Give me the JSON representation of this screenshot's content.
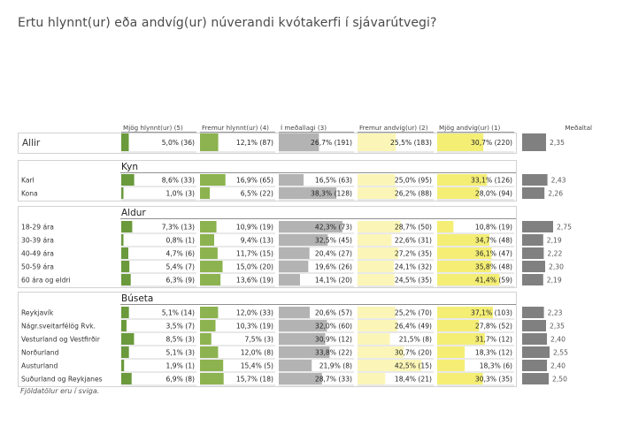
{
  "title": "Ertu hlynnt(ur) eða andvíg(ur) núverandi kvótakerfi í sjávarútvegi?",
  "footnote": "Fjöldatölur eru í sviga.",
  "colors": {
    "strongly_favor": "#6a9a3c",
    "favor": "#8cb34f",
    "neutral": "#b3b3b3",
    "against": "#fbf6b8",
    "strongly_against": "#f4ee75",
    "mean": "#808080"
  },
  "chart_data": {
    "type": "table",
    "columns": [
      "Mjög hlynnt(ur) (5)",
      "Fremur hlynnt(ur) (4)",
      "Í meðallagi (3)",
      "Fremur andvíg(ur) (2)",
      "Mjög andvíg(ur) (1)"
    ],
    "mean_label": "Meðaltal",
    "mean_range": [
      1,
      5
    ],
    "groups": [
      {
        "name": "",
        "rows": [
          {
            "label": "Allir",
            "values": [
              "5,0% (36)",
              "12,1% (87)",
              "26,7% (191)",
              "25,5% (183)",
              "30,7% (220)"
            ],
            "pct": [
              5.0,
              12.1,
              26.7,
              25.5,
              30.7
            ],
            "mean": 2.35,
            "mean_text": "2,35"
          }
        ]
      },
      {
        "name": "Kyn",
        "rows": [
          {
            "label": "Karl",
            "values": [
              "8,6% (33)",
              "16,9% (65)",
              "16,5% (63)",
              "25,0% (95)",
              "33,1% (126)"
            ],
            "pct": [
              8.6,
              16.9,
              16.5,
              25.0,
              33.1
            ],
            "mean": 2.43,
            "mean_text": "2,43"
          },
          {
            "label": "Kona",
            "values": [
              "1,0% (3)",
              "6,5% (22)",
              "38,3% (128)",
              "26,2% (88)",
              "28,0% (94)"
            ],
            "pct": [
              1.0,
              6.5,
              38.3,
              26.2,
              28.0
            ],
            "mean": 2.26,
            "mean_text": "2,26"
          }
        ]
      },
      {
        "name": "Aldur",
        "rows": [
          {
            "label": "18-29 ára",
            "values": [
              "7,3% (13)",
              "10,9% (19)",
              "42,3% (73)",
              "28,7% (50)",
              "10,8% (19)"
            ],
            "pct": [
              7.3,
              10.9,
              42.3,
              28.7,
              10.8
            ],
            "mean": 2.75,
            "mean_text": "2,75"
          },
          {
            "label": "30-39 ára",
            "values": [
              "0,8% (1)",
              "9,4% (13)",
              "32,5% (45)",
              "22,6% (31)",
              "34,7% (48)"
            ],
            "pct": [
              0.8,
              9.4,
              32.5,
              22.6,
              34.7
            ],
            "mean": 2.19,
            "mean_text": "2,19"
          },
          {
            "label": "40-49 ára",
            "values": [
              "4,7% (6)",
              "11,7% (15)",
              "20,4% (27)",
              "27,2% (35)",
              "36,1% (47)"
            ],
            "pct": [
              4.7,
              11.7,
              20.4,
              27.2,
              36.1
            ],
            "mean": 2.22,
            "mean_text": "2,22"
          },
          {
            "label": "50-59 ára",
            "values": [
              "5,4% (7)",
              "15,0% (20)",
              "19,6% (26)",
              "24,1% (32)",
              "35,8% (48)"
            ],
            "pct": [
              5.4,
              15.0,
              19.6,
              24.1,
              35.8
            ],
            "mean": 2.3,
            "mean_text": "2,30"
          },
          {
            "label": "60 ára og eldri",
            "values": [
              "6,3% (9)",
              "13,6% (19)",
              "14,1% (20)",
              "24,5% (35)",
              "41,4% (59)"
            ],
            "pct": [
              6.3,
              13.6,
              14.1,
              24.5,
              41.4
            ],
            "mean": 2.19,
            "mean_text": "2,19"
          }
        ]
      },
      {
        "name": "Búseta",
        "rows": [
          {
            "label": "Reykjavík",
            "values": [
              "5,1% (14)",
              "12,0% (33)",
              "20,6% (57)",
              "25,2% (70)",
              "37,1% (103)"
            ],
            "pct": [
              5.1,
              12.0,
              20.6,
              25.2,
              37.1
            ],
            "mean": 2.23,
            "mean_text": "2,23"
          },
          {
            "label": "Nágr.sveitarfélög Rvk.",
            "values": [
              "3,5% (7)",
              "10,3% (19)",
              "32,0% (60)",
              "26,4% (49)",
              "27,8% (52)"
            ],
            "pct": [
              3.5,
              10.3,
              32.0,
              26.4,
              27.8
            ],
            "mean": 2.35,
            "mean_text": "2,35"
          },
          {
            "label": "Vesturland og Vestfirðir",
            "values": [
              "8,5% (3)",
              "7,5% (3)",
              "30,9% (12)",
              "21,5% (8)",
              "31,7% (12)"
            ],
            "pct": [
              8.5,
              7.5,
              30.9,
              21.5,
              31.7
            ],
            "mean": 2.4,
            "mean_text": "2,40"
          },
          {
            "label": "Norðurland",
            "values": [
              "5,1% (3)",
              "12,0% (8)",
              "33,8% (22)",
              "30,7% (20)",
              "18,3% (12)"
            ],
            "pct": [
              5.1,
              12.0,
              33.8,
              30.7,
              18.3
            ],
            "mean": 2.55,
            "mean_text": "2,55"
          },
          {
            "label": "Austurland",
            "values": [
              "1,9% (1)",
              "15,4% (5)",
              "21,9% (8)",
              "42,5% (15)",
              "18,3% (6)"
            ],
            "pct": [
              1.9,
              15.4,
              21.9,
              42.5,
              18.3
            ],
            "mean": 2.4,
            "mean_text": "2,40"
          },
          {
            "label": "Suðurland og Reykjanes",
            "values": [
              "6,9% (8)",
              "15,7% (18)",
              "28,7% (33)",
              "18,4% (21)",
              "30,3% (35)"
            ],
            "pct": [
              6.9,
              15.7,
              28.7,
              18.4,
              30.3
            ],
            "mean": 2.5,
            "mean_text": "2,50"
          }
        ]
      }
    ]
  }
}
